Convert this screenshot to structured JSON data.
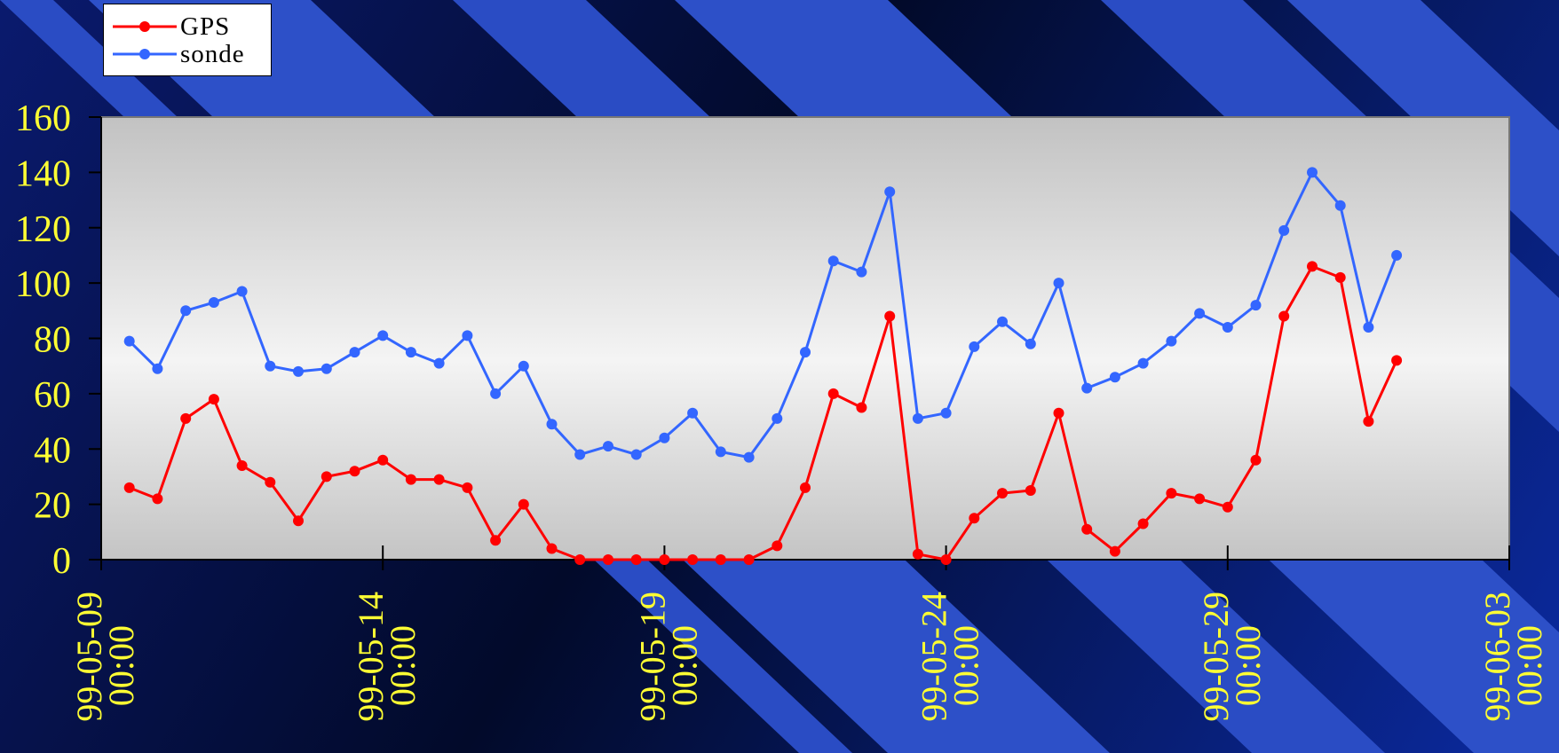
{
  "chart_data": {
    "type": "line",
    "title": "",
    "xlabel": "",
    "ylabel": "",
    "ylim": [
      0,
      160
    ],
    "yticks": [
      "0",
      "20",
      "40",
      "60",
      "80",
      "100",
      "120",
      "140",
      "160"
    ],
    "xlim": [
      "99-05-09 00:00",
      "99-06-03 00:00"
    ],
    "xticks": [
      {
        "date": "99-05-09",
        "time": "00:00"
      },
      {
        "date": "99-05-14",
        "time": "00:00"
      },
      {
        "date": "99-05-19",
        "time": "00:00"
      },
      {
        "date": "99-05-24",
        "time": "00:00"
      },
      {
        "date": "99-05-29",
        "time": "00:00"
      },
      {
        "date": "99-06-03",
        "time": "00:00"
      }
    ],
    "x": [
      "99-05-09 12:00",
      "99-05-10 00:00",
      "99-05-10 12:00",
      "99-05-11 00:00",
      "99-05-11 12:00",
      "99-05-12 00:00",
      "99-05-12 12:00",
      "99-05-13 00:00",
      "99-05-13 12:00",
      "99-05-14 00:00",
      "99-05-14 12:00",
      "99-05-15 00:00",
      "99-05-15 12:00",
      "99-05-16 00:00",
      "99-05-16 12:00",
      "99-05-17 00:00",
      "99-05-17 12:00",
      "99-05-18 00:00",
      "99-05-18 12:00",
      "99-05-19 00:00",
      "99-05-19 12:00",
      "99-05-20 00:00",
      "99-05-20 12:00",
      "99-05-21 00:00",
      "99-05-21 12:00",
      "99-05-22 00:00",
      "99-05-22 12:00",
      "99-05-23 00:00",
      "99-05-23 12:00",
      "99-05-24 00:00",
      "99-05-24 12:00",
      "99-05-25 00:00",
      "99-05-25 12:00",
      "99-05-26 00:00",
      "99-05-26 12:00",
      "99-05-27 00:00",
      "99-05-27 12:00",
      "99-05-28 00:00",
      "99-05-28 12:00",
      "99-05-29 00:00",
      "99-05-29 12:00",
      "99-05-30 00:00",
      "99-05-30 12:00",
      "99-05-31 00:00",
      "99-05-31 12:00",
      "99-06-01 00:00"
    ],
    "series": [
      {
        "name": "GPS",
        "color": "#ff0000",
        "values": [
          26,
          22,
          51,
          58,
          34,
          28,
          14,
          30,
          32,
          36,
          29,
          29,
          26,
          7,
          20,
          4,
          0,
          0,
          0,
          0,
          0,
          0,
          0,
          5,
          26,
          60,
          55,
          88,
          2,
          0,
          15,
          24,
          25,
          53,
          11,
          3,
          13,
          24,
          22,
          19,
          36,
          88,
          106,
          102,
          50,
          72
        ]
      },
      {
        "name": "sonde",
        "color": "#3366ff",
        "values": [
          79,
          69,
          90,
          93,
          97,
          70,
          68,
          69,
          75,
          81,
          75,
          71,
          81,
          60,
          70,
          49,
          38,
          41,
          38,
          44,
          53,
          39,
          37,
          51,
          75,
          108,
          104,
          133,
          51,
          53,
          77,
          86,
          78,
          100,
          62,
          66,
          71,
          79,
          89,
          84,
          92,
          119,
          140,
          128,
          84,
          110
        ]
      }
    ],
    "grid": false,
    "legend": "top-left"
  }
}
